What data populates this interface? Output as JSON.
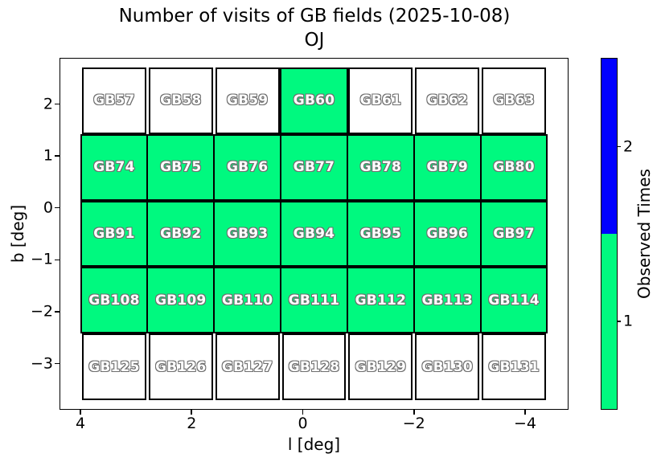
{
  "title": {
    "line1": "Number of visits of GB fields (2025-10-08)",
    "line2": "OJ"
  },
  "axes": {
    "xlabel": "l [deg]",
    "ylabel": "b [deg]",
    "x_ticks": [
      "4",
      "2",
      "0",
      "−2",
      "−4"
    ],
    "y_ticks": [
      "2",
      "1",
      "0",
      "−1",
      "−2",
      "−3"
    ]
  },
  "colorbar": {
    "label": "Observed Times",
    "ticks": [
      {
        "label": "2",
        "color": "#0000ff"
      },
      {
        "label": "1",
        "color": "#00f97f"
      }
    ],
    "top_color": "#0000ff",
    "bottom_color": "#00f97f"
  },
  "colors": {
    "visited_once": "#00f97f",
    "visited_twice": "#0000ff",
    "not_visited": "#ffffff",
    "cell_border": "#000000",
    "label_fill": "#ffffff",
    "label_outline": "#6e6e6e"
  },
  "grid": {
    "rows": [
      {
        "cells": [
          {
            "label": "GB57",
            "visits": 0
          },
          {
            "label": "GB58",
            "visits": 0
          },
          {
            "label": "GB59",
            "visits": 0
          },
          {
            "label": "GB60",
            "visits": 1
          },
          {
            "label": "GB61",
            "visits": 0
          },
          {
            "label": "GB62",
            "visits": 0
          },
          {
            "label": "GB63",
            "visits": 0
          }
        ]
      },
      {
        "cells": [
          {
            "label": "GB74",
            "visits": 1
          },
          {
            "label": "GB75",
            "visits": 1
          },
          {
            "label": "GB76",
            "visits": 1
          },
          {
            "label": "GB77",
            "visits": 1
          },
          {
            "label": "GB78",
            "visits": 1
          },
          {
            "label": "GB79",
            "visits": 1
          },
          {
            "label": "GB80",
            "visits": 1
          }
        ]
      },
      {
        "cells": [
          {
            "label": "GB91",
            "visits": 1
          },
          {
            "label": "GB92",
            "visits": 1
          },
          {
            "label": "GB93",
            "visits": 1
          },
          {
            "label": "GB94",
            "visits": 1
          },
          {
            "label": "GB95",
            "visits": 1
          },
          {
            "label": "GB96",
            "visits": 1
          },
          {
            "label": "GB97",
            "visits": 1
          }
        ]
      },
      {
        "cells": [
          {
            "label": "GB108",
            "visits": 1
          },
          {
            "label": "GB109",
            "visits": 1
          },
          {
            "label": "GB110",
            "visits": 1
          },
          {
            "label": "GB111",
            "visits": 1
          },
          {
            "label": "GB112",
            "visits": 1
          },
          {
            "label": "GB113",
            "visits": 1
          },
          {
            "label": "GB114",
            "visits": 1
          }
        ]
      },
      {
        "cells": [
          {
            "label": "GB125",
            "visits": 0
          },
          {
            "label": "GB126",
            "visits": 0
          },
          {
            "label": "GB127",
            "visits": 0
          },
          {
            "label": "GB128",
            "visits": 0
          },
          {
            "label": "GB129",
            "visits": 0
          },
          {
            "label": "GB130",
            "visits": 0
          },
          {
            "label": "GB131",
            "visits": 0
          }
        ]
      }
    ]
  },
  "chart_data": {
    "type": "heatmap",
    "title": "Number of visits of GB fields (2025-10-08)",
    "subtitle": "OJ",
    "xlabel": "l [deg]",
    "ylabel": "b [deg]",
    "x_tick_values": [
      4,
      2,
      0,
      -2,
      -4
    ],
    "y_tick_values": [
      2,
      1,
      0,
      -1,
      -2,
      -3
    ],
    "x_axis_reversed": true,
    "xlim": [
      4.4,
      -4.8
    ],
    "ylim": [
      -3.5,
      2.8
    ],
    "grid": false,
    "colorbar": {
      "label": "Observed Times",
      "values": [
        1,
        2
      ],
      "colors": [
        "#00f97f",
        "#0000ff"
      ],
      "unobserved_color": "#ffffff"
    },
    "l_centers_approx": [
      3.6,
      2.4,
      1.2,
      0,
      -1.2,
      -2.4,
      -3.6
    ],
    "b_centers_approx": [
      2.1,
      0.8,
      -0.5,
      -1.8,
      -3.1
    ],
    "rows": [
      {
        "fields": [
          "GB57",
          "GB58",
          "GB59",
          "GB60",
          "GB61",
          "GB62",
          "GB63"
        ],
        "visits": [
          0,
          0,
          0,
          1,
          0,
          0,
          0
        ]
      },
      {
        "fields": [
          "GB74",
          "GB75",
          "GB76",
          "GB77",
          "GB78",
          "GB79",
          "GB80"
        ],
        "visits": [
          1,
          1,
          1,
          1,
          1,
          1,
          1
        ]
      },
      {
        "fields": [
          "GB91",
          "GB92",
          "GB93",
          "GB94",
          "GB95",
          "GB96",
          "GB97"
        ],
        "visits": [
          1,
          1,
          1,
          1,
          1,
          1,
          1
        ]
      },
      {
        "fields": [
          "GB108",
          "GB109",
          "GB110",
          "GB111",
          "GB112",
          "GB113",
          "GB114"
        ],
        "visits": [
          1,
          1,
          1,
          1,
          1,
          1,
          1
        ]
      },
      {
        "fields": [
          "GB125",
          "GB126",
          "GB127",
          "GB128",
          "GB129",
          "GB130",
          "GB131"
        ],
        "visits": [
          0,
          0,
          0,
          0,
          0,
          0,
          0
        ]
      }
    ]
  }
}
